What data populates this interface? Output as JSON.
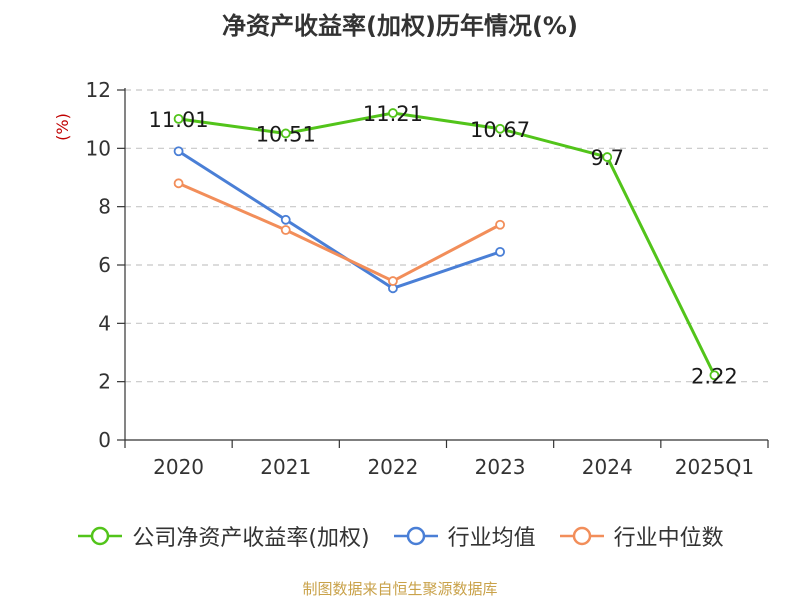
{
  "title": "净资产收益率(加权)历年情况(%)",
  "source": "制图数据来自恒生聚源数据库",
  "colors": {
    "company": "#52c41a",
    "avg": "#4a7fd6",
    "median": "#f28e5a",
    "unit": "#c00000"
  },
  "chart_data": {
    "type": "line",
    "categories": [
      "2020",
      "2021",
      "2022",
      "2023",
      "2024",
      "2025Q1"
    ],
    "ylabel": "(%)",
    "ylim": [
      0,
      12
    ],
    "yticks": [
      0,
      2,
      4,
      6,
      8,
      10,
      12
    ],
    "grid": true,
    "legend_position": "bottom",
    "series": [
      {
        "name": "公司净资产收益率(加权)",
        "values": [
          11.01,
          10.51,
          11.21,
          10.67,
          9.7,
          2.22
        ],
        "labels": [
          "11.01",
          "10.51",
          "11.21",
          "10.67",
          "9.7",
          "2.22"
        ]
      },
      {
        "name": "行业均值",
        "values": [
          9.9,
          7.55,
          5.2,
          6.45,
          null,
          null
        ]
      },
      {
        "name": "行业中位数",
        "values": [
          8.8,
          7.2,
          5.45,
          7.38,
          null,
          null
        ]
      }
    ]
  }
}
